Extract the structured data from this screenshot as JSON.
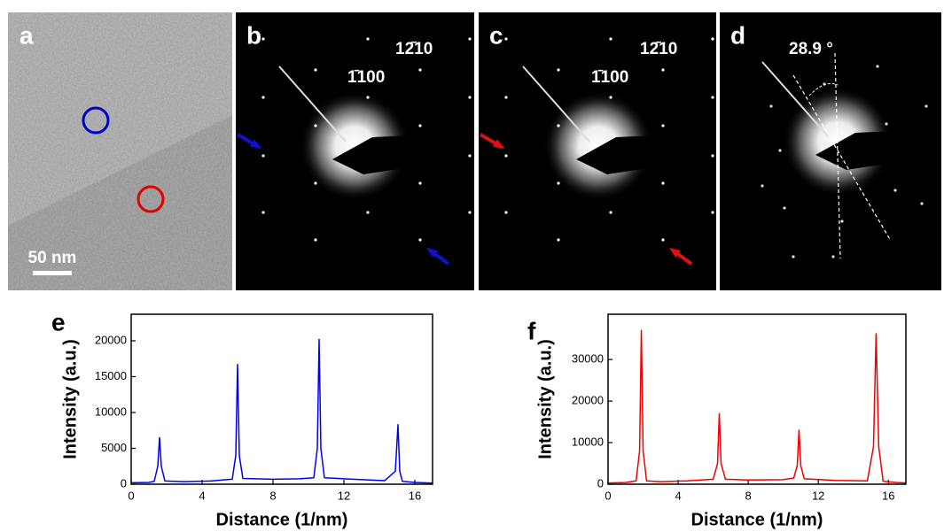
{
  "panels": {
    "a": {
      "label": "a",
      "scale_bar": "50 nm"
    },
    "b": {
      "label": "b",
      "spot_1": "1̄100",
      "spot_2": "12̄10"
    },
    "c": {
      "label": "c",
      "spot_1": "1̄100",
      "spot_2": "12̄10"
    },
    "d": {
      "label": "d",
      "angle": "28.9 °"
    }
  },
  "chart_data": [
    {
      "type": "line",
      "panel_label": "e",
      "x_label": "Distance (1/nm)",
      "y_label": "Intensity (a.u.)",
      "x": [
        0,
        1,
        1.3,
        1.5,
        1.6,
        1.7,
        1.9,
        3,
        4.5,
        5.7,
        5.9,
        6.0,
        6.1,
        6.3,
        8,
        9.5,
        10.3,
        10.5,
        10.6,
        10.7,
        10.9,
        12.5,
        14.3,
        14.9,
        15.05,
        15.15,
        15.3,
        16,
        17
      ],
      "series": [
        {
          "color": "#0000ee",
          "values": [
            200,
            250,
            400,
            2500,
            6500,
            2500,
            450,
            350,
            450,
            700,
            4000,
            16700,
            4000,
            800,
            700,
            750,
            900,
            5000,
            20200,
            5000,
            900,
            700,
            500,
            1800,
            8300,
            1800,
            400,
            250,
            150
          ]
        }
      ],
      "xlim": [
        0,
        17
      ],
      "xticks": [
        0,
        4,
        8,
        12,
        16
      ],
      "ylim": [
        0,
        23700
      ],
      "yticks": [
        0,
        5000,
        10000,
        15000,
        20000
      ]
    },
    {
      "type": "line",
      "panel_label": "f",
      "x_label": "Distance (1/nm)",
      "y_label": "Intensity (a.u.)",
      "x": [
        0,
        1,
        1.6,
        1.8,
        1.9,
        2.0,
        2.2,
        3,
        4.5,
        6.0,
        6.25,
        6.35,
        6.45,
        6.7,
        8,
        10,
        10.6,
        10.8,
        10.9,
        11.0,
        11.2,
        13,
        14.8,
        15.15,
        15.3,
        15.45,
        15.7,
        16.5,
        17
      ],
      "series": [
        {
          "color": "#ee0000",
          "values": [
            300,
            400,
            800,
            8000,
            37000,
            8000,
            800,
            600,
            800,
            1200,
            5000,
            17000,
            5000,
            1200,
            1000,
            1100,
            1500,
            4500,
            13000,
            4500,
            1300,
            900,
            800,
            9000,
            36200,
            9000,
            700,
            400,
            300
          ]
        }
      ],
      "xlim": [
        0,
        17
      ],
      "xticks": [
        0,
        4,
        8,
        12,
        16
      ],
      "ylim": [
        0,
        40900
      ],
      "yticks": [
        0,
        10000,
        20000,
        30000
      ]
    }
  ]
}
